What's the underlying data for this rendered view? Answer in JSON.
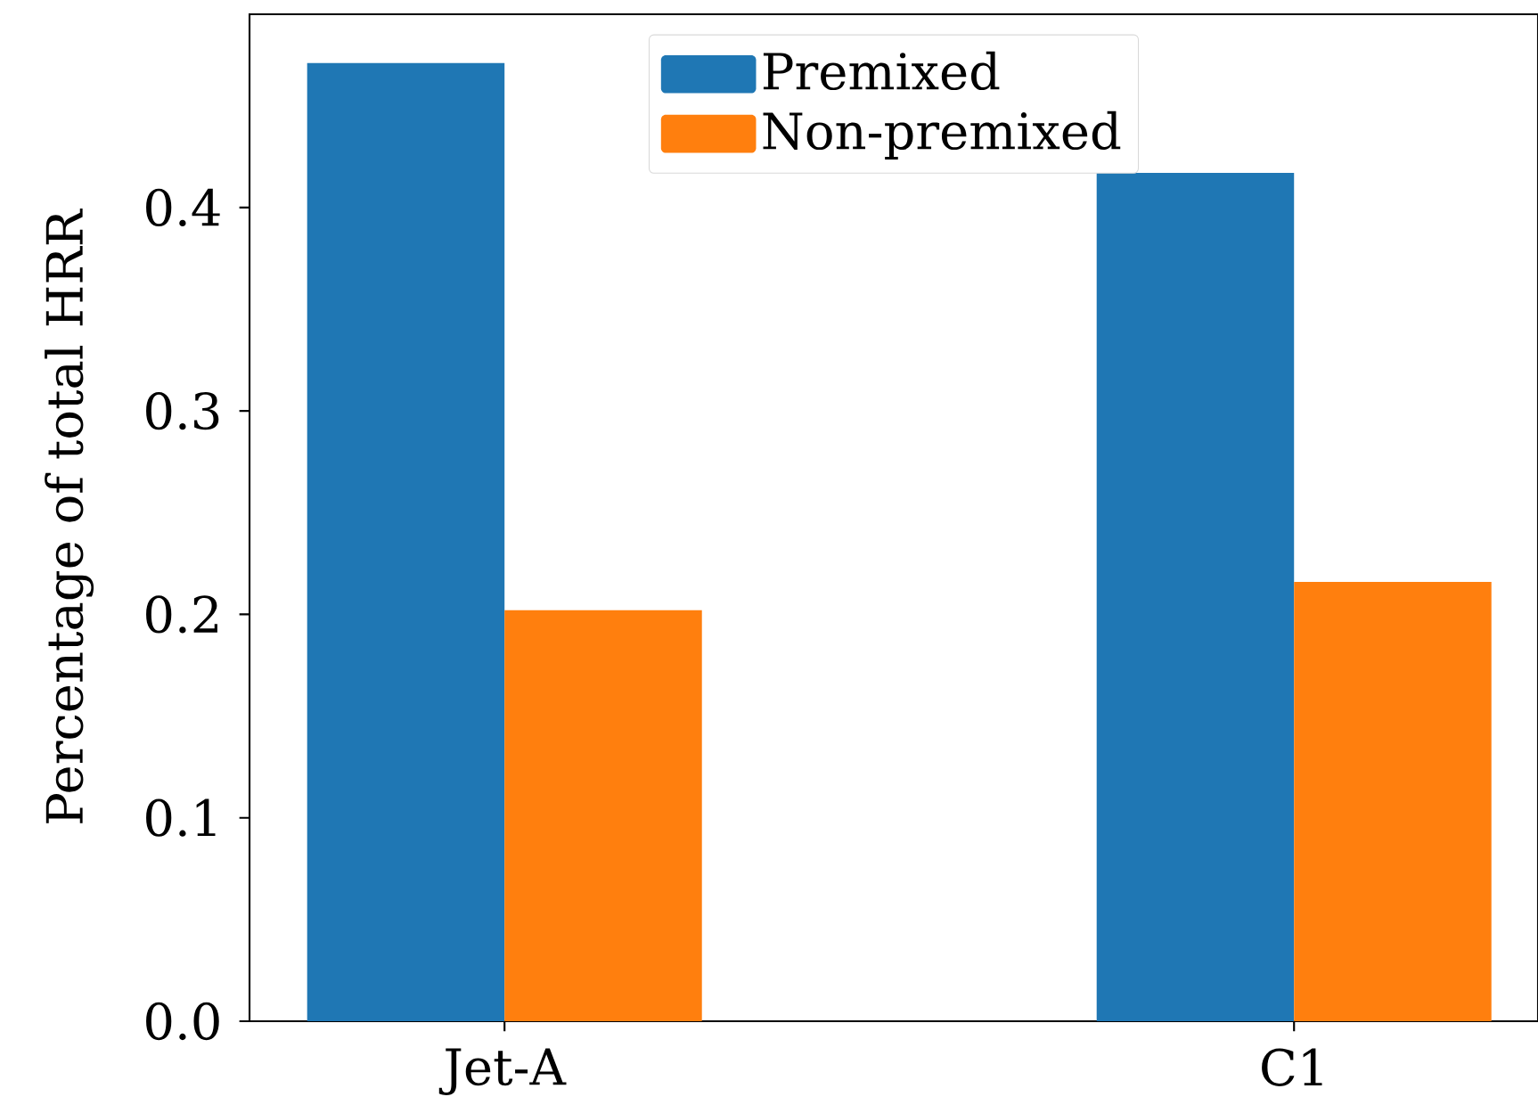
{
  "chart_data": {
    "type": "bar",
    "ylabel": "Percentage of total HRR",
    "categories": [
      "Jet-A",
      "C1"
    ],
    "series": [
      {
        "name": "Premixed",
        "color": "#1f77b4",
        "values": [
          0.471,
          0.417
        ]
      },
      {
        "name": "Non-premixed",
        "color": "#ff7f0e",
        "values": [
          0.202,
          0.216
        ]
      }
    ],
    "ylim": [
      0,
      0.495
    ],
    "yticks": [
      {
        "value": 0,
        "label": "0.0"
      },
      0.1,
      0.2,
      0.3,
      0.4
    ],
    "grid": false,
    "legend": "top"
  }
}
